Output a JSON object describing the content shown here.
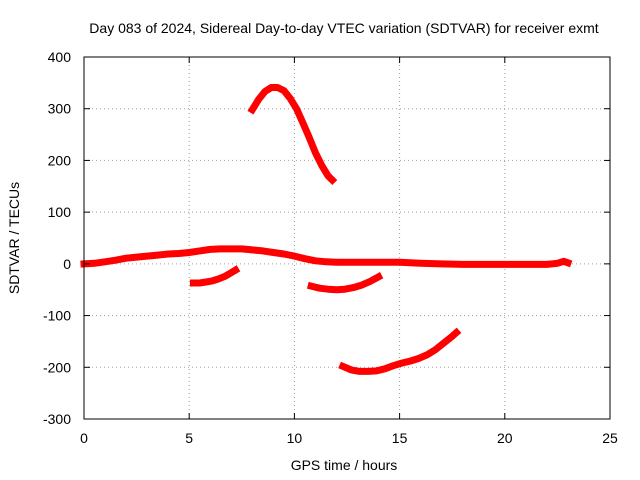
{
  "chart_data": {
    "type": "line",
    "title": "Day 083 of 2024, Sidereal Day-to-day VTEC variation (SDTVAR) for receiver exmt",
    "xlabel": "GPS time / hours",
    "ylabel": "SDTVAR / TECUs",
    "xlim": [
      0,
      25
    ],
    "ylim": [
      -300,
      400
    ],
    "xticks": [
      0,
      5,
      10,
      15,
      20,
      25
    ],
    "yticks": [
      -300,
      -200,
      -100,
      0,
      100,
      200,
      300,
      400
    ],
    "grid": true,
    "legend": "none",
    "series_color": "#ff0000",
    "series": [
      {
        "name": "main",
        "x": [
          0,
          0.5,
          1,
          1.5,
          2,
          2.5,
          3,
          3.5,
          4,
          4.5,
          5,
          5.5,
          6,
          6.5,
          7,
          7.5,
          8,
          8.5,
          9,
          9.5,
          10,
          10.5,
          11,
          11.5,
          12,
          13,
          14,
          15,
          16,
          17,
          18,
          19,
          20,
          21,
          22,
          22.5,
          22.8,
          23
        ],
        "y": [
          0,
          1,
          4,
          7,
          11,
          13,
          15,
          17,
          19,
          20,
          22,
          25,
          28,
          29,
          29,
          29,
          27,
          25,
          22,
          19,
          15,
          10,
          6,
          4,
          3,
          3,
          3,
          3,
          1,
          0,
          -1,
          -1,
          -1,
          -1,
          -1,
          1,
          5,
          2
        ]
      },
      {
        "name": "arc-high",
        "x": [
          8,
          8.3,
          8.6,
          8.9,
          9.2,
          9.5,
          9.8,
          10.1,
          10.4,
          10.7,
          11,
          11.3,
          11.6,
          11.8
        ],
        "y": [
          298,
          318,
          333,
          341,
          341,
          335,
          320,
          300,
          273,
          245,
          215,
          190,
          170,
          162
        ]
      },
      {
        "name": "arc-a",
        "x": [
          5.2,
          5.5,
          5.8,
          6.1,
          6.4,
          6.7,
          7.0,
          7.2
        ],
        "y": [
          -37,
          -37,
          -35,
          -33,
          -29,
          -24,
          -17,
          -12
        ]
      },
      {
        "name": "arc-b",
        "x": [
          10.8,
          11.2,
          11.6,
          12.0,
          12.4,
          12.8,
          13.2,
          13.6,
          14.0
        ],
        "y": [
          -43,
          -47,
          -49,
          -50,
          -49,
          -46,
          -41,
          -34,
          -25
        ]
      },
      {
        "name": "arc-c",
        "x": [
          12.3,
          12.7,
          13.1,
          13.5,
          13.9,
          14.3,
          14.7,
          15.1,
          15.5,
          15.9,
          16.3,
          16.7,
          17.1,
          17.5,
          17.7
        ],
        "y": [
          -198,
          -205,
          -208,
          -208,
          -207,
          -203,
          -197,
          -192,
          -188,
          -183,
          -176,
          -166,
          -153,
          -140,
          -133
        ]
      }
    ]
  }
}
